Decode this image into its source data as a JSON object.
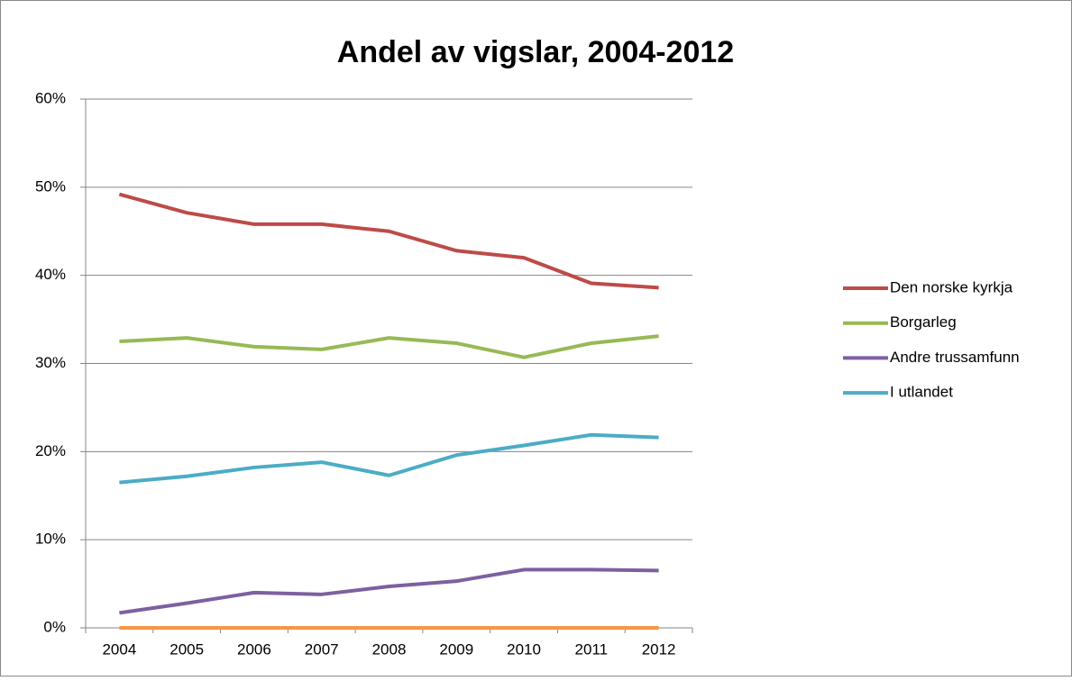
{
  "chart_data": {
    "type": "line",
    "title": "Andel av vigslar, 2004-2012",
    "categories": [
      "2004",
      "2005",
      "2006",
      "2007",
      "2008",
      "2009",
      "2010",
      "2011",
      "2012"
    ],
    "series": [
      {
        "name": "Den norske kyrkja",
        "color": "#be4b48",
        "values": [
          49.2,
          47.1,
          45.8,
          45.8,
          45.0,
          42.8,
          42.0,
          39.1,
          38.6
        ]
      },
      {
        "name": "Borgarleg",
        "color": "#98b954",
        "values": [
          32.5,
          32.9,
          31.9,
          31.6,
          32.9,
          32.3,
          30.7,
          32.3,
          33.1
        ]
      },
      {
        "name": "Andre trussamfunn",
        "color": "#7d60a0",
        "values": [
          1.7,
          2.8,
          4.0,
          3.8,
          4.7,
          5.3,
          6.6,
          6.6,
          6.5
        ]
      },
      {
        "name": "I utlandet",
        "color": "#4bacc6",
        "values": [
          16.5,
          17.2,
          18.2,
          18.8,
          17.3,
          19.6,
          20.7,
          21.9,
          21.6
        ]
      },
      {
        "color": "#f79646",
        "values": [
          0,
          0,
          0,
          0,
          0,
          0,
          0,
          0,
          0
        ]
      }
    ],
    "ylim": [
      0,
      60
    ],
    "yticks": [
      {
        "value": 0,
        "label": "0%"
      },
      {
        "value": 10,
        "label": "10%"
      },
      {
        "value": 20,
        "label": "20%"
      },
      {
        "value": 30,
        "label": "30%"
      },
      {
        "value": 40,
        "label": "40%"
      },
      {
        "value": 50,
        "label": "50%"
      },
      {
        "value": 60,
        "label": "60%"
      }
    ],
    "grid": true,
    "legend": "right"
  }
}
